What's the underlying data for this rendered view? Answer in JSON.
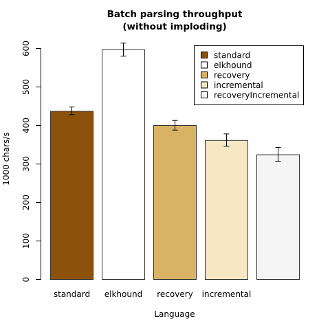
{
  "chart_data": {
    "type": "bar",
    "title": [
      "Batch parsing throughput",
      "(without imploding)"
    ],
    "xlabel": "Language",
    "ylabel": "1000 chars/s",
    "ylim": [
      0,
      600
    ],
    "yticks": [
      0,
      100,
      200,
      300,
      400,
      500,
      600
    ],
    "categories": [
      "standard",
      "elkhound",
      "recovery",
      "incremental",
      ""
    ],
    "series": [
      {
        "name": "standard",
        "value": 437,
        "error_low": 428,
        "error_high": 448,
        "color": "#8c510a"
      },
      {
        "name": "elkhound",
        "value": 597,
        "error_low": 580,
        "error_high": 614,
        "color": "#ffffff"
      },
      {
        "name": "recovery",
        "value": 400,
        "error_low": 388,
        "error_high": 413,
        "color": "#d8b365"
      },
      {
        "name": "incremental",
        "value": 361,
        "error_low": 346,
        "error_high": 378,
        "color": "#f6e8c3"
      },
      {
        "name": "recoveryIncremental",
        "value": 324,
        "error_low": 307,
        "error_high": 343,
        "color": "#f5f5f5"
      }
    ],
    "legend": {
      "position": "top-right"
    },
    "grid": false
  }
}
